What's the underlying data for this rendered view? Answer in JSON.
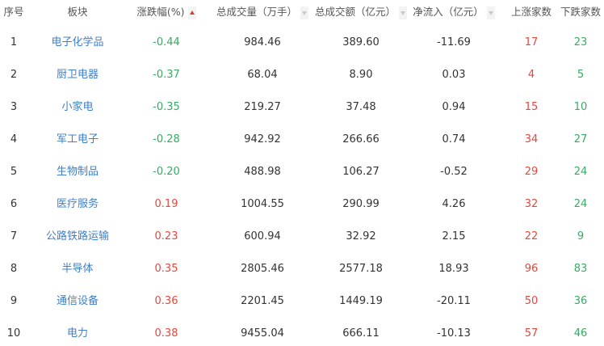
{
  "header": {
    "index": "序号",
    "sector": "板块",
    "change": "涨跌幅(%)",
    "volume": "总成交量（万手）",
    "turnover": "总成交额（亿元）",
    "netflow": "净流入（亿元）",
    "up": "上涨家数",
    "down": "下跌家数",
    "sorted_column": "change",
    "sort_direction": "ascending"
  },
  "colors": {
    "sector": "#3f7fc8",
    "negative": "#3aa864",
    "positive": "#e5473b"
  },
  "rows": [
    {
      "index": "1",
      "sector": "电子化学品",
      "change": "-0.44",
      "volume": "984.46",
      "turnover": "389.60",
      "netflow": "-11.69",
      "up": "17",
      "down": "23"
    },
    {
      "index": "2",
      "sector": "厨卫电器",
      "change": "-0.37",
      "volume": "68.04",
      "turnover": "8.90",
      "netflow": "0.03",
      "up": "4",
      "down": "5"
    },
    {
      "index": "3",
      "sector": "小家电",
      "change": "-0.35",
      "volume": "219.27",
      "turnover": "37.48",
      "netflow": "0.94",
      "up": "15",
      "down": "10"
    },
    {
      "index": "4",
      "sector": "军工电子",
      "change": "-0.28",
      "volume": "942.92",
      "turnover": "266.66",
      "netflow": "0.74",
      "up": "34",
      "down": "27"
    },
    {
      "index": "5",
      "sector": "生物制品",
      "change": "-0.20",
      "volume": "488.98",
      "turnover": "106.27",
      "netflow": "-0.52",
      "up": "29",
      "down": "24"
    },
    {
      "index": "6",
      "sector": "医疗服务",
      "change": "0.19",
      "volume": "1004.55",
      "turnover": "290.99",
      "netflow": "4.26",
      "up": "32",
      "down": "24"
    },
    {
      "index": "7",
      "sector": "公路铁路运输",
      "change": "0.23",
      "volume": "600.94",
      "turnover": "32.92",
      "netflow": "2.15",
      "up": "22",
      "down": "9"
    },
    {
      "index": "8",
      "sector": "半导体",
      "change": "0.35",
      "volume": "2805.46",
      "turnover": "2577.18",
      "netflow": "18.93",
      "up": "96",
      "down": "83"
    },
    {
      "index": "9",
      "sector": "通信设备",
      "change": "0.36",
      "volume": "2201.45",
      "turnover": "1449.19",
      "netflow": "-20.11",
      "up": "50",
      "down": "36"
    },
    {
      "index": "10",
      "sector": "电力",
      "change": "0.38",
      "volume": "9455.04",
      "turnover": "666.11",
      "netflow": "-10.13",
      "up": "57",
      "down": "46"
    }
  ]
}
